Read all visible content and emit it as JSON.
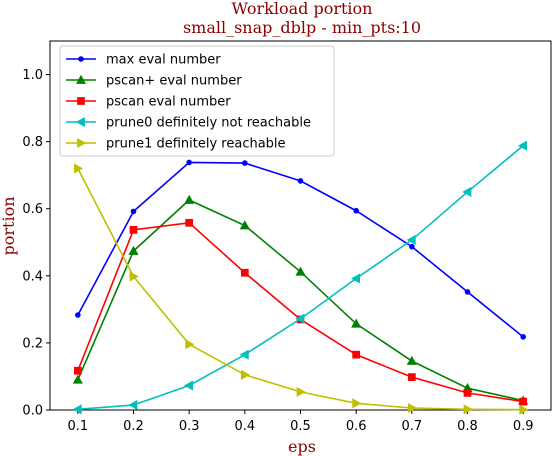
{
  "chart_data": {
    "type": "line",
    "title": "Workload portion",
    "subtitle": "small_snap_dblp - min_pts:10",
    "xlabel": "eps",
    "ylabel": "portion",
    "xlim": [
      0.05,
      0.95
    ],
    "ylim": [
      0.0,
      1.1
    ],
    "x_ticks": [
      "0.1",
      "0.2",
      "0.3",
      "0.4",
      "0.5",
      "0.6",
      "0.7",
      "0.8",
      "0.9"
    ],
    "y_ticks": [
      "0.0",
      "0.2",
      "0.4",
      "0.6",
      "0.8",
      "1.0"
    ],
    "grid": false,
    "legend_position": "top-left",
    "x": [
      0.1,
      0.2,
      0.3,
      0.4,
      0.5,
      0.6,
      0.7,
      0.8,
      0.9
    ],
    "series": [
      {
        "name": "max eval number",
        "color": "#0000ff",
        "marker": "circle",
        "values": [
          0.283,
          0.592,
          0.738,
          0.736,
          0.683,
          0.594,
          0.487,
          0.352,
          0.218
        ]
      },
      {
        "name": "pscan+ eval number",
        "color": "#008000",
        "marker": "triangle-up",
        "values": [
          0.09,
          0.474,
          0.626,
          0.55,
          0.412,
          0.257,
          0.146,
          0.065,
          0.028
        ]
      },
      {
        "name": "pscan eval number",
        "color": "#ff0000",
        "marker": "square",
        "values": [
          0.117,
          0.537,
          0.558,
          0.409,
          0.27,
          0.165,
          0.098,
          0.051,
          0.025
        ]
      },
      {
        "name": "prune0 definitely not reachable",
        "color": "#00bfbf",
        "marker": "triangle-left",
        "values": [
          0.002,
          0.015,
          0.073,
          0.165,
          0.272,
          0.392,
          0.507,
          0.65,
          0.788
        ]
      },
      {
        "name": "prune1 definitely reachable",
        "color": "#bfbf00",
        "marker": "triangle-right",
        "values": [
          0.72,
          0.398,
          0.196,
          0.105,
          0.054,
          0.02,
          0.006,
          0.002,
          0.001
        ]
      }
    ]
  }
}
